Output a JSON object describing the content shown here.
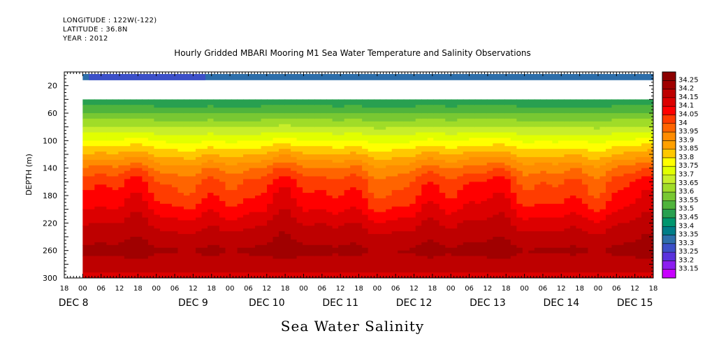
{
  "header": {
    "longitude": "LONGITUDE : 122W(-122)",
    "latitude": "LATITUDE : 36.8N",
    "year": "YEAR : 2012"
  },
  "chart_data": {
    "type": "heatmap",
    "title": "Hourly Gridded MBARI Mooring M1 Sea Water Temperature and Salinity Observations",
    "subtitle": "Sea Water Salinity",
    "ylabel": "DEPTH (m)",
    "xlabel": "",
    "y_axis": {
      "range": [
        300,
        0
      ],
      "ticks": [
        20,
        60,
        100,
        140,
        180,
        220,
        260,
        300
      ]
    },
    "x_axis": {
      "start": "2012-12-07 18:00",
      "end": "2012-12-15 18:00",
      "hour_ticks": [
        "18",
        "00",
        "06",
        "12",
        "18",
        "00",
        "06",
        "12",
        "18",
        "00",
        "06",
        "12",
        "18",
        "00",
        "06",
        "12",
        "18",
        "00",
        "06",
        "12",
        "18",
        "00",
        "06",
        "12",
        "18",
        "00",
        "06",
        "12",
        "18",
        "00",
        "06",
        "12",
        "18"
      ],
      "day_labels": [
        "DEC 8",
        "DEC 9",
        "DEC 10",
        "DEC 11",
        "DEC 12",
        "DEC 13",
        "DEC 14",
        "DEC 15"
      ]
    },
    "data_start": "2012-12-08 00:00",
    "colorbar": {
      "levels": [
        "34.25",
        "34.2",
        "34.15",
        "34.1",
        "34.05",
        "34",
        "33.95",
        "33.9",
        "33.85",
        "33.8",
        "33.75",
        "33.7",
        "33.65",
        "33.6",
        "33.55",
        "33.5",
        "33.45",
        "33.4",
        "33.35",
        "33.3",
        "33.25",
        "33.2",
        "33.15"
      ],
      "colors": [
        "#8c0000",
        "#a00000",
        "#be0000",
        "#dc0000",
        "#ff0000",
        "#ff3c00",
        "#ff6400",
        "#ff8c00",
        "#ffa000",
        "#ffc800",
        "#ffff00",
        "#e1ff00",
        "#c8ee2a",
        "#a0dc28",
        "#78c832",
        "#50b43c",
        "#28a050",
        "#00966e",
        "#007d87",
        "#2d6eaa",
        "#3c50c8",
        "#5a32dc",
        "#8c1ef0",
        "#c800ff"
      ]
    },
    "depth_profile": [
      {
        "depth": 10,
        "salinity": 33.32
      },
      {
        "depth": 40,
        "salinity": 33.45
      },
      {
        "depth": 60,
        "salinity": 33.55
      },
      {
        "depth": 80,
        "salinity": 33.65
      },
      {
        "depth": 100,
        "salinity": 33.75
      },
      {
        "depth": 120,
        "salinity": 33.85
      },
      {
        "depth": 140,
        "salinity": 33.95
      },
      {
        "depth": 160,
        "salinity": 34.02
      },
      {
        "depth": 180,
        "salinity": 34.05
      },
      {
        "depth": 200,
        "salinity": 34.09
      },
      {
        "depth": 220,
        "salinity": 34.14
      },
      {
        "depth": 240,
        "salinity": 34.18
      },
      {
        "depth": 260,
        "salinity": 34.21
      },
      {
        "depth": 280,
        "salinity": 34.18
      },
      {
        "depth": 300,
        "salinity": 34.13
      }
    ]
  }
}
